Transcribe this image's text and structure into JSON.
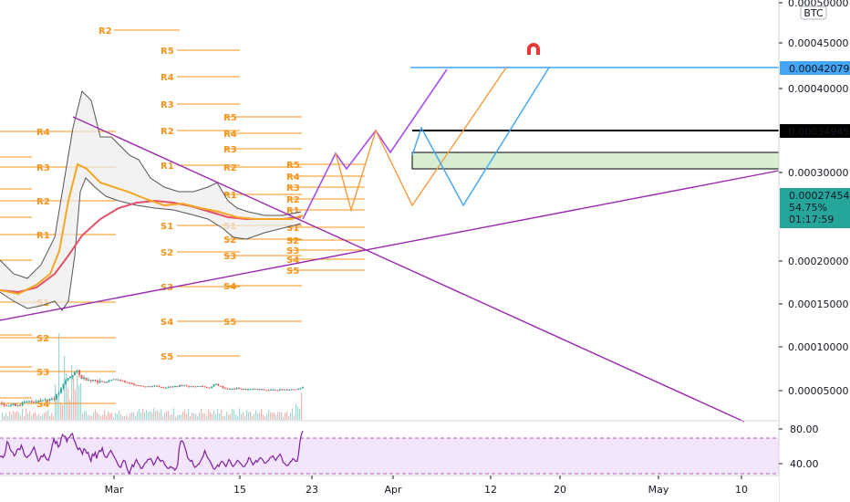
{
  "chart_data": {
    "type": "line",
    "currency": "BTC",
    "price_axis": {
      "ticks": [
        "0.00050000",
        "0.00045000",
        "0.00040000",
        "0.00030000",
        "0.00020000",
        "0.00015000",
        "0.00010000",
        "0.00005000"
      ],
      "ylim": [
        6.2e-06,
        0.0005044
      ]
    },
    "price_tags": {
      "upper_target": "0.00042079",
      "mid_target": "0.00034945",
      "current": "0.00027454",
      "change": "54.75%",
      "countdown": "01:17:59"
    },
    "x_axis": {
      "labels": [
        "Mar",
        "15",
        "23",
        "Apr",
        "12",
        "20",
        "May",
        "10"
      ]
    },
    "rsi": {
      "ticks": [
        "80.00",
        "40.00"
      ],
      "ylim": [
        28,
        88
      ],
      "band": [
        30,
        70
      ],
      "values": [
        49,
        50,
        48,
        50,
        56,
        66,
        64,
        58,
        55,
        54,
        50,
        52,
        57,
        58,
        57,
        62,
        58,
        52,
        49,
        48,
        50,
        51,
        54,
        57,
        60,
        54,
        49,
        44,
        46,
        50,
        49,
        52,
        48,
        46,
        45,
        50,
        56,
        64,
        69,
        64,
        66,
        60,
        62,
        69,
        74,
        72,
        72,
        66,
        70,
        71,
        74,
        75,
        68,
        65,
        60,
        57,
        59,
        56,
        52,
        58,
        57,
        53,
        54,
        48,
        44,
        52,
        50,
        54,
        47,
        53,
        56,
        55,
        59,
        52,
        49,
        48,
        51,
        54,
        56,
        53,
        50,
        47,
        44,
        40,
        38,
        37,
        42,
        45,
        44,
        38,
        33,
        30,
        35,
        40,
        38,
        43,
        46,
        42,
        40,
        36,
        36,
        39,
        42,
        43,
        46,
        46,
        47,
        44,
        40,
        42,
        46,
        49,
        46,
        44,
        45,
        44,
        40,
        38,
        36,
        36,
        38,
        37,
        36,
        34,
        36,
        40,
        58,
        66,
        67,
        65,
        60,
        55,
        48,
        46,
        44,
        45,
        40,
        37,
        38,
        40,
        41,
        44,
        47,
        50,
        56,
        52,
        48,
        46,
        43,
        40,
        36,
        35,
        37,
        40,
        38,
        42,
        44,
        43,
        40,
        38,
        42,
        46,
        44,
        40,
        38,
        40,
        42,
        45,
        44,
        42,
        40,
        38,
        38,
        41,
        43,
        48,
        47,
        43,
        40,
        42,
        45,
        43,
        46,
        48,
        47,
        45,
        42,
        42,
        44,
        45,
        48,
        49,
        50,
        47,
        45,
        48,
        50,
        52,
        49,
        43,
        42,
        40,
        39,
        40,
        43,
        44,
        47,
        46,
        44,
        44,
        52,
        66,
        74,
        78
      ]
    },
    "pivot_columns": [
      {
        "labels": [
          "R4",
          "R3",
          "R2",
          "R1",
          "S1",
          "S2",
          "S3",
          "S4"
        ]
      },
      {
        "labels": [
          "R2",
          "R5",
          "R4",
          "R3",
          "R2",
          "R1",
          "S1",
          "S2",
          "S3",
          "S4",
          "S5"
        ]
      },
      {
        "labels": [
          "R5",
          "R4",
          "R3",
          "R2",
          "R1",
          "S1",
          "S2",
          "S3",
          "S4",
          "S5"
        ]
      },
      {
        "labels": [
          "R5",
          "R4",
          "R3",
          "R2",
          "R1",
          "S1",
          "S2",
          "S3",
          "S4",
          "S5"
        ]
      }
    ],
    "colors": {
      "price_up": "#26a69a",
      "price_down": "#ef5350",
      "pivot": "#f7931a",
      "trendline": "#9c27b0",
      "projection_purple": "#a64df2",
      "projection_blue": "#42a5f5",
      "projection_orange": "#f79a3a",
      "sma_red": "#e5506a",
      "ema_orange": "#f5a623",
      "rsi_line": "#7e1fa0",
      "rsi_band": "#f3e5fb",
      "target_blue": "#42a5f5",
      "box_fill": "#d8eed3"
    },
    "icons": [
      "magnet-icon"
    ]
  }
}
